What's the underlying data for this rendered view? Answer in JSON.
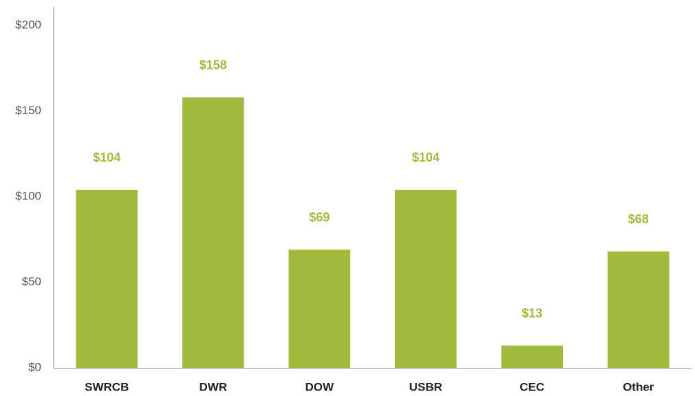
{
  "chart_data": {
    "type": "bar",
    "categories": [
      "SWRCB",
      "DWR",
      "DOW",
      "USBR",
      "CEC",
      "Other"
    ],
    "values": [
      104,
      158,
      69,
      104,
      13,
      68
    ],
    "value_labels": [
      "$104",
      "$158",
      "$69",
      "$104",
      "$13",
      "$68"
    ],
    "color": "#a0bb3b",
    "ylim": [
      0,
      200
    ],
    "yticks": [
      {
        "value": 0,
        "label": "$0"
      },
      {
        "value": 50,
        "label": "$50"
      },
      {
        "value": 100,
        "label": "$100"
      },
      {
        "value": 150,
        "label": "$150"
      },
      {
        "value": 200,
        "label": "$200"
      }
    ],
    "grid": false
  }
}
